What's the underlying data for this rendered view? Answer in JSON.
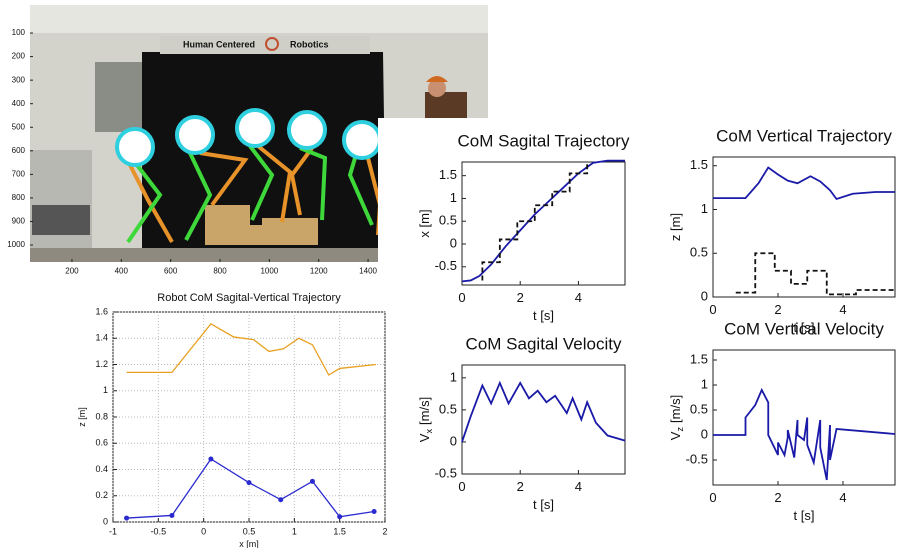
{
  "chart_data": [
    {
      "type": "image",
      "banner_left": "Human Centered",
      "banner_right": "Robotics",
      "xlim": [
        30,
        1886
      ],
      "ylim": [
        1072,
        -19
      ],
      "xticks": [
        200,
        400,
        600,
        800,
        1000,
        1200,
        1400
      ],
      "yticks": [
        100,
        200,
        300,
        400,
        500,
        600,
        700,
        800,
        900,
        1000
      ]
    },
    {
      "type": "line",
      "title": "Robot CoM Sagital-Vertical Trajectory",
      "xlabel": "x [m]",
      "ylabel": "z [m]",
      "xlim": [
        -1,
        2
      ],
      "ylim": [
        0,
        1.6
      ],
      "xticks": [
        -1,
        -0.5,
        0,
        0.5,
        1,
        1.5,
        2
      ],
      "yticks": [
        0,
        0.2,
        0.4,
        0.6,
        0.8,
        1,
        1.2,
        1.4,
        1.6
      ],
      "grid": true,
      "series": [
        {
          "color": "#e8a020",
          "x": [
            -0.85,
            -0.35,
            0.08,
            0.33,
            0.55,
            0.72,
            0.88,
            1.05,
            1.2,
            1.38,
            1.5,
            1.9
          ],
          "values": [
            1.14,
            1.14,
            1.51,
            1.41,
            1.39,
            1.3,
            1.32,
            1.4,
            1.35,
            1.12,
            1.17,
            1.2
          ]
        },
        {
          "color": "#2a2ad0",
          "marker": "o",
          "x": [
            -0.85,
            -0.35,
            0.08,
            0.5,
            0.85,
            1.2,
            1.5,
            1.88
          ],
          "values": [
            0.03,
            0.05,
            0.48,
            0.3,
            0.17,
            0.31,
            0.04,
            0.08
          ]
        }
      ]
    },
    {
      "type": "line",
      "title": "CoM Sagital Trajectory",
      "xlabel": "t [s]",
      "ylabel": "x [m]",
      "xlim": [
        0,
        5.6
      ],
      "ylim": [
        -0.9,
        1.8
      ],
      "xticks": [
        0,
        2,
        4
      ],
      "yticks": [
        -0.5,
        0,
        0.5,
        1,
        1.5
      ],
      "series": [
        {
          "color": "#1a1aa8",
          "x": [
            0,
            0.3,
            0.6,
            1,
            1.5,
            2,
            2.5,
            3,
            3.5,
            4,
            4.5,
            5,
            5.6
          ],
          "values": [
            -0.82,
            -0.8,
            -0.7,
            -0.45,
            -0.05,
            0.3,
            0.65,
            0.95,
            1.25,
            1.55,
            1.78,
            1.83,
            1.83
          ]
        },
        {
          "color": "#111111",
          "dash": true,
          "x": [
            0.7,
            0.7,
            1.3,
            1.3,
            1.9,
            1.9,
            2.5,
            2.5,
            3.1,
            3.1,
            3.7,
            3.7,
            4.3,
            4.3
          ],
          "values": [
            -0.8,
            -0.4,
            -0.4,
            0.1,
            0.1,
            0.5,
            0.5,
            0.85,
            0.85,
            1.15,
            1.15,
            1.55,
            1.55,
            1.8
          ]
        }
      ]
    },
    {
      "type": "line",
      "title": "CoM Vertical Trajectory",
      "xlabel": "t [s]",
      "ylabel": "z [m]",
      "xlim": [
        0,
        5.6
      ],
      "ylim": [
        0,
        1.6
      ],
      "xticks": [
        0,
        2,
        4
      ],
      "yticks": [
        0,
        0.5,
        1,
        1.5
      ],
      "series": [
        {
          "color": "#1a1aa8",
          "x": [
            0,
            1,
            1.4,
            1.7,
            2,
            2.3,
            2.6,
            3,
            3.3,
            3.6,
            3.8,
            4.3,
            5,
            5.6
          ],
          "values": [
            1.13,
            1.13,
            1.3,
            1.48,
            1.4,
            1.33,
            1.3,
            1.38,
            1.32,
            1.22,
            1.12,
            1.18,
            1.2,
            1.2
          ]
        },
        {
          "color": "#111111",
          "dash": true,
          "x": [
            0.7,
            1.3,
            1.3,
            1.9,
            1.9,
            2.4,
            2.4,
            2.9,
            2.9,
            3.5,
            3.5,
            4.4,
            4.4,
            5.6
          ],
          "values": [
            0.05,
            0.05,
            0.5,
            0.5,
            0.3,
            0.3,
            0.15,
            0.15,
            0.3,
            0.3,
            0.03,
            0.03,
            0.08,
            0.08
          ]
        }
      ]
    },
    {
      "type": "line",
      "title": "CoM Sagital Velocity",
      "xlabel": "t [s]",
      "ylabel": "V",
      "ylabel_sub": "x",
      "ylabel_unit": "[m/s]",
      "xlim": [
        0,
        5.6
      ],
      "ylim": [
        -0.5,
        1.2
      ],
      "xticks": [
        0,
        2,
        4
      ],
      "yticks": [
        -0.5,
        0,
        0.5,
        1
      ],
      "series": [
        {
          "color": "#1a1aa8",
          "x": [
            0,
            0.3,
            0.7,
            1,
            1.3,
            1.6,
            2,
            2.3,
            2.6,
            2.9,
            3.2,
            3.6,
            3.8,
            4.1,
            4.3,
            4.6,
            5,
            5.6
          ],
          "values": [
            0,
            0.4,
            0.88,
            0.6,
            0.92,
            0.6,
            0.92,
            0.68,
            0.8,
            0.62,
            0.72,
            0.45,
            0.68,
            0.35,
            0.62,
            0.3,
            0.1,
            0.02
          ]
        }
      ]
    },
    {
      "type": "line",
      "title": "CoM Vertical Velocity",
      "xlabel": "t [s]",
      "ylabel": "V",
      "ylabel_sub": "z",
      "ylabel_unit": "[m/s]",
      "xlim": [
        0,
        5.6
      ],
      "ylim": [
        -1,
        1.7
      ],
      "xticks": [
        0,
        2,
        4
      ],
      "yticks": [
        -0.5,
        0,
        0.5,
        1,
        1.5
      ],
      "series": [
        {
          "color": "#1a1aa8",
          "x": [
            0,
            1,
            1,
            1.3,
            1.5,
            1.7,
            1.7,
            2,
            2,
            2.2,
            2.3,
            2.3,
            2.5,
            2.6,
            2.6,
            2.8,
            2.9,
            2.9,
            3.1,
            3.3,
            3.3,
            3.5,
            3.6,
            3.6,
            3.8,
            5.6
          ],
          "values": [
            0,
            0,
            0.35,
            0.6,
            0.9,
            0.65,
            0,
            -0.4,
            -0.15,
            -0.4,
            -0.05,
            0.1,
            -0.45,
            0.3,
            0,
            -0.1,
            0.35,
            -0.2,
            -0.55,
            0.3,
            -0.25,
            -0.9,
            0.2,
            -0.5,
            0.12,
            0.02
          ]
        }
      ]
    }
  ]
}
